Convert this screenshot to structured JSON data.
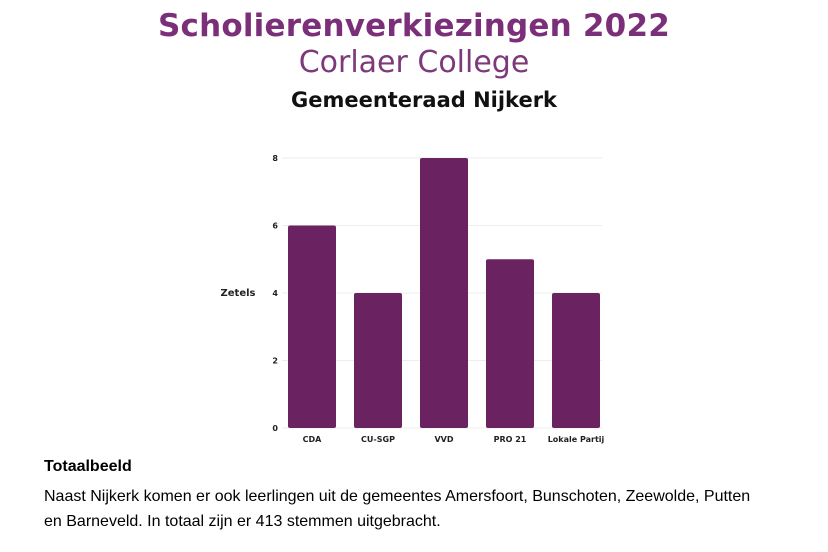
{
  "header": {
    "title": "Scholierenverkiezingen 2022",
    "subtitle": "Corlaer College"
  },
  "colors": {
    "brand": "#7a2f78",
    "bar": "#6b2260",
    "grid": "#eeeeee"
  },
  "chart_data": {
    "type": "bar",
    "title": "Gemeenteraad Nijkerk",
    "xlabel": "",
    "ylabel": "Zetels",
    "categories": [
      "CDA",
      "CU-SGP",
      "VVD",
      "PRO 21",
      "Lokale Partij"
    ],
    "values": [
      6,
      4,
      8,
      5,
      4
    ],
    "ylim": [
      0,
      8
    ],
    "yticks": [
      0,
      2,
      4,
      6,
      8
    ],
    "grid": true,
    "legend": "none"
  },
  "footer": {
    "heading": "Totaalbeeld",
    "text": "Naast Nijkerk komen er ook leerlingen uit de gemeentes Amersfoort, Bunschoten, Zeewolde, Putten en Barneveld. In totaal zijn er 413 stemmen uitgebracht."
  }
}
